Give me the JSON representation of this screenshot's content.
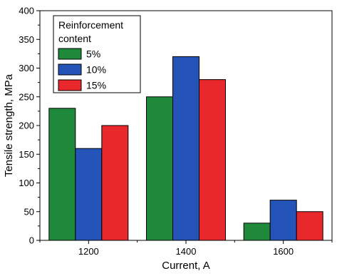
{
  "chart_data": {
    "type": "bar",
    "categories": [
      "1200",
      "1400",
      "1600"
    ],
    "series": [
      {
        "name": "5%",
        "color": "#1f8a3b",
        "values": [
          230,
          250,
          30
        ]
      },
      {
        "name": "10%",
        "color": "#2454b8",
        "values": [
          160,
          320,
          70
        ]
      },
      {
        "name": "15%",
        "color": "#e8282b",
        "values": [
          200,
          280,
          50
        ]
      }
    ],
    "title": "",
    "xlabel": "Current, A",
    "ylabel": "Tensile strength, MPa",
    "ylim": [
      0,
      400
    ],
    "yticks": [
      0,
      50,
      100,
      150,
      200,
      250,
      300,
      350,
      400
    ],
    "legend": {
      "title_lines": [
        "Reinforcement",
        "content"
      ],
      "placement": "top-left"
    },
    "grid": false
  }
}
